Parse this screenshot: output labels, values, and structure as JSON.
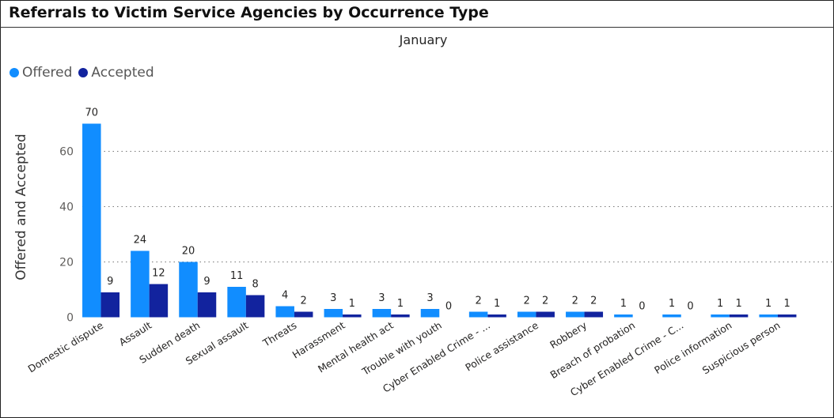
{
  "header": {
    "title": "Referrals to Victim Service Agencies by Occurrence Type"
  },
  "colors": {
    "offered": "#118DFF",
    "accepted": "#12239E",
    "grid": "#777777"
  },
  "chart_data": {
    "type": "bar",
    "title": "January",
    "xlabel": "",
    "ylabel": "Offered and Accepted",
    "ylim": [
      0,
      70
    ],
    "yticks": [
      0,
      20,
      40,
      60
    ],
    "grid": true,
    "legend_position": "top-left",
    "categories": [
      "Domestic dispute",
      "Assault",
      "Sudden death",
      "Sexual assault",
      "Threats",
      "Harassment",
      "Mental health act",
      "Trouble with youth",
      "Cyber Enabled Crime - ...",
      "Police assistance",
      "Robbery",
      "Breach of probation",
      "Cyber Enabled Crime - C...",
      "Police information",
      "Suspicious person"
    ],
    "series": [
      {
        "name": "Offered",
        "values": [
          70,
          24,
          20,
          11,
          4,
          3,
          3,
          3,
          2,
          2,
          2,
          1,
          1,
          1,
          1
        ]
      },
      {
        "name": "Accepted",
        "values": [
          9,
          12,
          9,
          8,
          2,
          1,
          1,
          0,
          1,
          2,
          2,
          0,
          0,
          1,
          1
        ]
      }
    ]
  }
}
